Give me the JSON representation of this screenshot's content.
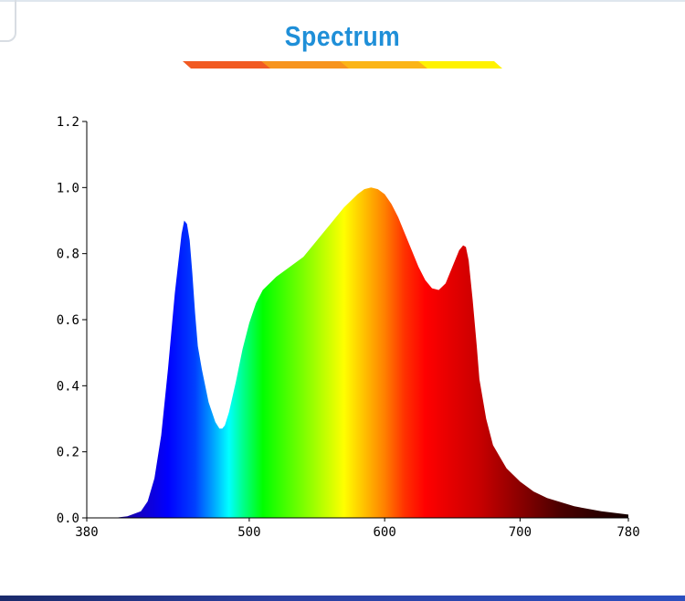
{
  "page": {
    "title": "Spectrum",
    "title_color": "#1f8fd8",
    "title_bar_colors": [
      "#f15a22",
      "#f7941d",
      "#fbb517",
      "#fff200"
    ]
  },
  "chart_data": {
    "type": "area",
    "title": "",
    "xlabel": "",
    "ylabel": "",
    "xlim": [
      380,
      780
    ],
    "ylim": [
      0,
      1.2
    ],
    "x_ticks": [
      380,
      500,
      600,
      700,
      780
    ],
    "x_tick_labels": [
      "380",
      "500",
      "600",
      "700",
      "780"
    ],
    "y_ticks": [
      0.0,
      0.2,
      0.4,
      0.6,
      0.8,
      1.0,
      1.2
    ],
    "y_tick_labels": [
      "0.0",
      "0.2",
      "0.4",
      "0.6",
      "0.8",
      "1.0",
      "1.2"
    ],
    "grid": false,
    "fill": "wavelength-color gradient",
    "series": [
      {
        "x": [
          380,
          400,
          410,
          420,
          425,
          430,
          435,
          440,
          445,
          450,
          452,
          454,
          456,
          458,
          460,
          462,
          465,
          470,
          475,
          478,
          480,
          482,
          485,
          490,
          495,
          500,
          505,
          510,
          515,
          520,
          530,
          540,
          550,
          560,
          570,
          580,
          585,
          590,
          595,
          600,
          605,
          610,
          615,
          620,
          625,
          630,
          635,
          640,
          645,
          650,
          655,
          658,
          660,
          662,
          665,
          668,
          670,
          675,
          680,
          690,
          700,
          710,
          720,
          740,
          760,
          780
        ],
        "y": [
          0.0,
          0.0,
          0.005,
          0.02,
          0.05,
          0.12,
          0.25,
          0.45,
          0.68,
          0.86,
          0.9,
          0.89,
          0.84,
          0.74,
          0.62,
          0.52,
          0.45,
          0.35,
          0.29,
          0.27,
          0.27,
          0.28,
          0.32,
          0.41,
          0.51,
          0.59,
          0.65,
          0.69,
          0.71,
          0.73,
          0.76,
          0.79,
          0.84,
          0.89,
          0.94,
          0.98,
          0.995,
          1.0,
          0.995,
          0.98,
          0.95,
          0.91,
          0.86,
          0.81,
          0.76,
          0.72,
          0.695,
          0.69,
          0.71,
          0.76,
          0.81,
          0.825,
          0.82,
          0.78,
          0.66,
          0.52,
          0.42,
          0.3,
          0.22,
          0.15,
          0.11,
          0.08,
          0.06,
          0.035,
          0.02,
          0.01
        ]
      }
    ]
  }
}
